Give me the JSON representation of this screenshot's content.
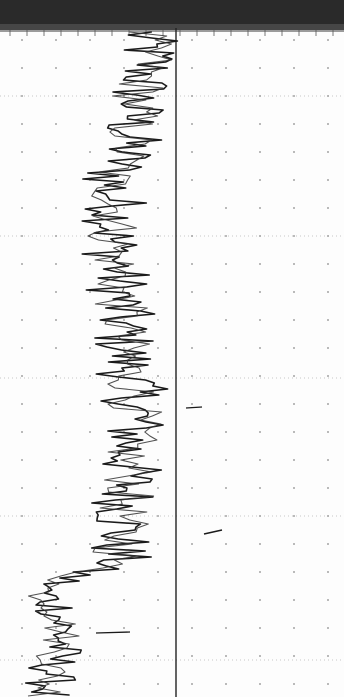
{
  "colors": {
    "paper": "#fdfdfd",
    "trace": "#1a1a1a",
    "grid_dot": "#8a8a8a",
    "grid_major": "#b4b4b4",
    "top_band": "#2a2a2a",
    "vertical_line": "#222222"
  },
  "scan": {
    "kind": "scanned strip-chart recording",
    "orientation": "vertical",
    "printed_text": []
  }
}
